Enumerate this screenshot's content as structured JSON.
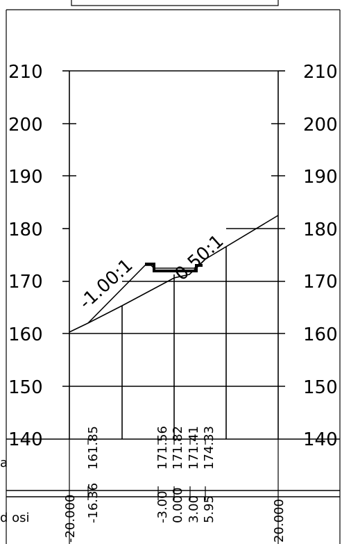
{
  "chart_data": {
    "type": "cross-section",
    "elevation_ticks": [
      210,
      200,
      190,
      180,
      170,
      160,
      150,
      140
    ],
    "offset_range": [
      -20,
      20
    ],
    "elevation_range": [
      140,
      210
    ],
    "slope_labels": [
      "-1.00:1",
      "0.50:1"
    ],
    "row_labels": [
      "a",
      "d osi"
    ],
    "elevation_values": [
      "161.85",
      "171.56",
      "171.82",
      "171.41",
      "174.33"
    ],
    "offset_values": [
      "-20.000",
      "-16.36",
      "-3.00",
      "0.000",
      "3.00",
      "5.95",
      "20.000"
    ],
    "ground_line": [
      [
        -20,
        160.3
      ],
      [
        -16.36,
        161.85
      ],
      [
        -3,
        171.56
      ],
      [
        0,
        171.82
      ],
      [
        3,
        171.41
      ],
      [
        5.95,
        174.33
      ],
      [
        20,
        182.7
      ]
    ],
    "design_line": [
      [
        -16.36,
        162.0
      ],
      [
        -10.5,
        173.2
      ],
      [
        -9.0,
        173.2
      ],
      [
        -8.0,
        172.2
      ],
      [
        3.8,
        172.2
      ],
      [
        4.8,
        173.2
      ],
      [
        5.95,
        174.33
      ]
    ]
  }
}
